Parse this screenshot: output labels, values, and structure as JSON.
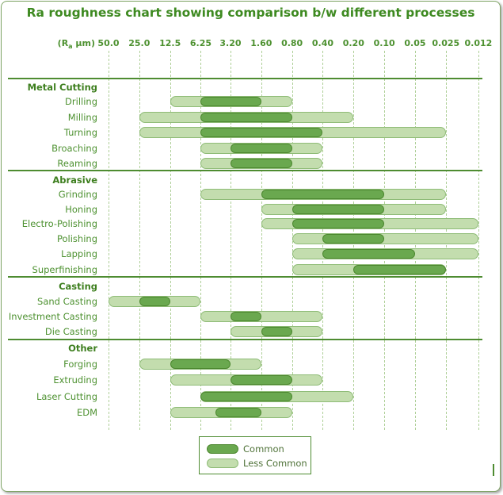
{
  "title": "Ra roughness chart showing comparison b/w different processes",
  "axis": {
    "unit_prefix": "(R",
    "unit_sub": "a",
    "unit_suffix": " µm)",
    "tick_labels": [
      "50.0",
      "25.0",
      "12.5",
      "6.25",
      "3.20",
      "1.60",
      "0.80",
      "0.40",
      "0.20",
      "0.10",
      "0.05",
      "0.025",
      "0.012"
    ],
    "tick_values": [
      50,
      25,
      12.5,
      6.25,
      3.2,
      1.6,
      0.8,
      0.4,
      0.2,
      0.1,
      0.05,
      0.025,
      0.012
    ]
  },
  "legend": {
    "items": [
      {
        "label": "Common",
        "kind": "common"
      },
      {
        "label": "Less Common",
        "kind": "less_common"
      }
    ]
  },
  "colors": {
    "title_text": "#3e8a21",
    "header_text": "#3e7f1f",
    "label_text": "#4d9130",
    "legend_text": "#4f7238",
    "common_fill": "#6aa84f",
    "common_border": "#4c872f",
    "less_common_fill": "#c3ddae",
    "less_common_border": "#8fbc77",
    "gridline": "#aecf97",
    "separator": "#4e8c31",
    "frame_border": "#7fa465"
  },
  "chart_data": {
    "type": "bar",
    "orientation": "horizontal",
    "x_scale": "log2",
    "x_unit": "Ra µm",
    "x_range": [
      50,
      0.012
    ],
    "title": "Ra roughness chart showing comparison b/w different processes",
    "legend_entries": [
      "Common",
      "Less Common"
    ],
    "note": "ranges given as [max_Ra, min_Ra] in µm",
    "sections": [
      {
        "name": "Metal Cutting",
        "processes": [
          {
            "name": "Drilling",
            "less_common": [
              12.5,
              0.8
            ],
            "common": [
              6.25,
              1.6
            ]
          },
          {
            "name": "Milling",
            "less_common": [
              25,
              0.2
            ],
            "common": [
              6.25,
              0.8
            ]
          },
          {
            "name": "Turning",
            "less_common": [
              25,
              0.025
            ],
            "common": [
              6.25,
              0.4
            ]
          },
          {
            "name": "Broaching",
            "less_common": [
              6.25,
              0.4
            ],
            "common": [
              3.2,
              0.8
            ]
          },
          {
            "name": "Reaming",
            "less_common": [
              6.25,
              0.4
            ],
            "common": [
              3.2,
              0.8
            ]
          }
        ]
      },
      {
        "name": "Abrasive",
        "processes": [
          {
            "name": "Grinding",
            "less_common": [
              6.25,
              0.025
            ],
            "common": [
              1.6,
              0.1
            ]
          },
          {
            "name": "Honing",
            "less_common": [
              1.6,
              0.025
            ],
            "common": [
              0.8,
              0.1
            ]
          },
          {
            "name": "Electro-Polishing",
            "less_common": [
              1.6,
              0.012
            ],
            "common": [
              0.8,
              0.1
            ]
          },
          {
            "name": "Polishing",
            "less_common": [
              0.8,
              0.012
            ],
            "common": [
              0.4,
              0.1
            ]
          },
          {
            "name": "Lapping",
            "less_common": [
              0.8,
              0.012
            ],
            "common": [
              0.4,
              0.05
            ]
          },
          {
            "name": "Superfinishing",
            "less_common": [
              0.8,
              0.025
            ],
            "common": [
              0.2,
              0.025
            ]
          }
        ]
      },
      {
        "name": "Casting",
        "processes": [
          {
            "name": "Sand Casting",
            "less_common": [
              50,
              6.25
            ],
            "common": [
              25,
              12.5
            ]
          },
          {
            "name": "Investment Casting",
            "less_common": [
              6.25,
              0.4
            ],
            "common": [
              3.2,
              1.6
            ]
          },
          {
            "name": "Die Casting",
            "less_common": [
              3.2,
              0.4
            ],
            "common": [
              1.6,
              0.8
            ]
          }
        ]
      },
      {
        "name": "Other",
        "processes": [
          {
            "name": "Forging",
            "less_common": [
              25,
              1.6
            ],
            "common": [
              12.5,
              3.2
            ]
          },
          {
            "name": "Extruding",
            "less_common": [
              12.5,
              0.4
            ],
            "common": [
              3.2,
              0.8
            ]
          },
          {
            "name": "Laser Cutting",
            "less_common": [
              6.25,
              0.2
            ],
            "common": [
              6.25,
              0.8
            ]
          },
          {
            "name": "EDM",
            "less_common": [
              12.5,
              0.8
            ],
            "common": [
              4.5,
              1.6
            ]
          }
        ]
      }
    ]
  }
}
